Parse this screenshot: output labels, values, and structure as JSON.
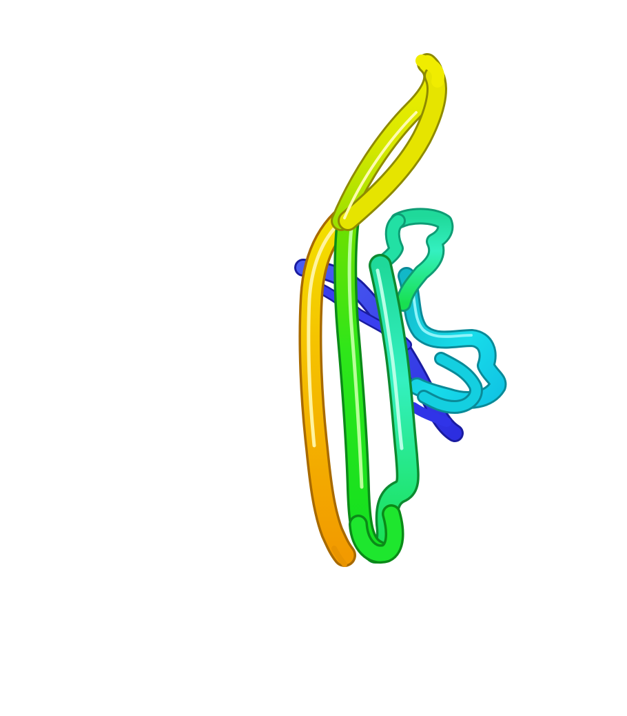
{
  "render": {
    "background": "#ffffff",
    "style": "rainbow cartoon ribbon",
    "colors": {
      "blue": "#3a3ff0",
      "cyan": "#19d8e6",
      "teal": "#1fe0a8",
      "green": "#1ee62e",
      "lime": "#8ae000",
      "yellow": "#e8e400",
      "orange": "#f2a800"
    }
  }
}
